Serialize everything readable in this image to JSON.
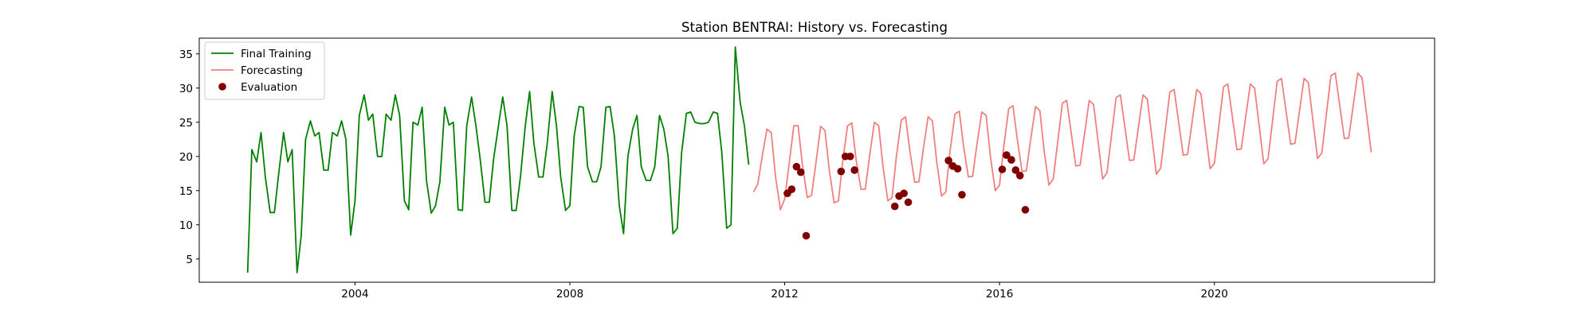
{
  "chart_data": {
    "type": "line",
    "title": "Station BENTRAI: History vs. Forecasting",
    "xlabel": "",
    "ylabel": "",
    "xlim": [
      2001.1,
      2024.1
    ],
    "ylim": [
      1.6,
      37.3
    ],
    "xticks": [
      2004,
      2008,
      2012,
      2016,
      2020
    ],
    "yticks": [
      5,
      10,
      15,
      20,
      25,
      30,
      35
    ],
    "grid": false,
    "legend_position": "top-left",
    "series": [
      {
        "name": "Final Training",
        "kind": "line",
        "color": "#008000",
        "points": [
          [
            2002.0,
            3.0
          ],
          [
            2002.08,
            21.0
          ],
          [
            2002.17,
            19.2
          ],
          [
            2002.25,
            23.5
          ],
          [
            2002.33,
            17.0
          ],
          [
            2002.42,
            11.8
          ],
          [
            2002.5,
            11.8
          ],
          [
            2002.58,
            17.5
          ],
          [
            2002.67,
            23.5
          ],
          [
            2002.75,
            19.2
          ],
          [
            2002.83,
            21.0
          ],
          [
            2002.92,
            3.0
          ],
          [
            2003.0,
            8.5
          ],
          [
            2003.08,
            22.5
          ],
          [
            2003.17,
            25.2
          ],
          [
            2003.25,
            23.0
          ],
          [
            2003.33,
            23.5
          ],
          [
            2003.42,
            18.0
          ],
          [
            2003.5,
            18.0
          ],
          [
            2003.58,
            23.5
          ],
          [
            2003.67,
            23.0
          ],
          [
            2003.75,
            25.2
          ],
          [
            2003.83,
            22.5
          ],
          [
            2003.92,
            8.5
          ],
          [
            2004.0,
            13.5
          ],
          [
            2004.08,
            26.0
          ],
          [
            2004.17,
            29.0
          ],
          [
            2004.25,
            25.3
          ],
          [
            2004.33,
            26.2
          ],
          [
            2004.42,
            20.0
          ],
          [
            2004.5,
            20.0
          ],
          [
            2004.58,
            26.2
          ],
          [
            2004.67,
            25.3
          ],
          [
            2004.75,
            29.0
          ],
          [
            2004.83,
            26.0
          ],
          [
            2004.92,
            13.5
          ],
          [
            2005.0,
            12.2
          ],
          [
            2005.08,
            25.0
          ],
          [
            2005.17,
            24.6
          ],
          [
            2005.25,
            27.2
          ],
          [
            2005.33,
            16.5
          ],
          [
            2005.42,
            11.7
          ],
          [
            2005.5,
            12.8
          ],
          [
            2005.58,
            16.3
          ],
          [
            2005.67,
            27.2
          ],
          [
            2005.75,
            24.6
          ],
          [
            2005.83,
            25.0
          ],
          [
            2005.92,
            12.2
          ],
          [
            2006.0,
            12.1
          ],
          [
            2006.08,
            24.5
          ],
          [
            2006.17,
            28.7
          ],
          [
            2006.25,
            24.5
          ],
          [
            2006.33,
            19.6
          ],
          [
            2006.42,
            13.3
          ],
          [
            2006.5,
            13.3
          ],
          [
            2006.58,
            19.6
          ],
          [
            2006.67,
            24.5
          ],
          [
            2006.75,
            28.7
          ],
          [
            2006.83,
            24.5
          ],
          [
            2006.92,
            12.1
          ],
          [
            2007.0,
            12.1
          ],
          [
            2007.08,
            17.0
          ],
          [
            2007.17,
            24.5
          ],
          [
            2007.25,
            29.5
          ],
          [
            2007.33,
            22.0
          ],
          [
            2007.42,
            17.0
          ],
          [
            2007.5,
            17.0
          ],
          [
            2007.58,
            22.0
          ],
          [
            2007.67,
            29.5
          ],
          [
            2007.75,
            24.5
          ],
          [
            2007.83,
            17.0
          ],
          [
            2007.92,
            12.1
          ],
          [
            2008.0,
            12.8
          ],
          [
            2008.08,
            23.0
          ],
          [
            2008.17,
            27.3
          ],
          [
            2008.25,
            27.2
          ],
          [
            2008.33,
            18.5
          ],
          [
            2008.42,
            16.3
          ],
          [
            2008.5,
            16.3
          ],
          [
            2008.58,
            18.5
          ],
          [
            2008.67,
            27.2
          ],
          [
            2008.75,
            27.3
          ],
          [
            2008.83,
            23.0
          ],
          [
            2008.92,
            12.8
          ],
          [
            2009.0,
            8.7
          ],
          [
            2009.08,
            20.0
          ],
          [
            2009.17,
            24.0
          ],
          [
            2009.25,
            26.0
          ],
          [
            2009.33,
            18.5
          ],
          [
            2009.42,
            16.5
          ],
          [
            2009.5,
            16.5
          ],
          [
            2009.58,
            18.5
          ],
          [
            2009.67,
            26.0
          ],
          [
            2009.75,
            24.0
          ],
          [
            2009.83,
            20.0
          ],
          [
            2009.92,
            8.7
          ],
          [
            2010.0,
            9.5
          ],
          [
            2010.08,
            20.5
          ],
          [
            2010.17,
            26.3
          ],
          [
            2010.25,
            26.5
          ],
          [
            2010.33,
            25.0
          ],
          [
            2010.42,
            24.8
          ],
          [
            2010.5,
            24.8
          ],
          [
            2010.58,
            25.0
          ],
          [
            2010.67,
            26.5
          ],
          [
            2010.75,
            26.3
          ],
          [
            2010.83,
            20.5
          ],
          [
            2010.92,
            9.5
          ],
          [
            2011.0,
            10.0
          ],
          [
            2011.08,
            36.0
          ],
          [
            2011.17,
            28.0
          ],
          [
            2011.25,
            24.5
          ],
          [
            2011.33,
            18.8
          ]
        ]
      },
      {
        "name": "Forecasting",
        "kind": "line",
        "color": "#f08080",
        "points": [
          [
            2011.42,
            14.8
          ],
          [
            2011.5,
            16.0
          ],
          [
            2011.58,
            20.0
          ],
          [
            2011.67,
            24.0
          ],
          [
            2011.75,
            23.5
          ],
          [
            2011.83,
            17.0
          ],
          [
            2011.92,
            12.2
          ],
          [
            2012.0,
            13.8
          ],
          [
            2012.08,
            18.8
          ],
          [
            2012.17,
            24.5
          ],
          [
            2012.25,
            24.5
          ],
          [
            2012.33,
            18.8
          ],
          [
            2012.42,
            14.0
          ],
          [
            2012.5,
            14.3
          ],
          [
            2012.58,
            19.0
          ],
          [
            2012.67,
            24.4
          ],
          [
            2012.75,
            23.8
          ],
          [
            2012.83,
            18.0
          ],
          [
            2012.92,
            13.2
          ],
          [
            2013.0,
            13.5
          ],
          [
            2013.08,
            19.2
          ],
          [
            2013.17,
            24.5
          ],
          [
            2013.25,
            24.9
          ],
          [
            2013.33,
            19.5
          ],
          [
            2013.42,
            15.2
          ],
          [
            2013.5,
            15.2
          ],
          [
            2013.58,
            20.0
          ],
          [
            2013.67,
            25.0
          ],
          [
            2013.75,
            24.5
          ],
          [
            2013.83,
            18.5
          ],
          [
            2013.92,
            13.5
          ],
          [
            2014.0,
            14.0
          ],
          [
            2014.08,
            20.0
          ],
          [
            2014.17,
            25.3
          ],
          [
            2014.25,
            25.8
          ],
          [
            2014.33,
            20.8
          ],
          [
            2014.42,
            16.2
          ],
          [
            2014.5,
            16.3
          ],
          [
            2014.58,
            21.0
          ],
          [
            2014.67,
            25.8
          ],
          [
            2014.75,
            25.2
          ],
          [
            2014.83,
            19.2
          ],
          [
            2014.92,
            14.2
          ],
          [
            2015.0,
            14.8
          ],
          [
            2015.08,
            20.8
          ],
          [
            2015.17,
            26.2
          ],
          [
            2015.25,
            26.6
          ],
          [
            2015.33,
            21.5
          ],
          [
            2015.42,
            17.0
          ],
          [
            2015.5,
            17.1
          ],
          [
            2015.58,
            21.8
          ],
          [
            2015.67,
            26.5
          ],
          [
            2015.75,
            26.0
          ],
          [
            2015.83,
            20.0
          ],
          [
            2015.92,
            15.0
          ],
          [
            2016.0,
            15.8
          ],
          [
            2016.08,
            21.5
          ],
          [
            2016.17,
            27.0
          ],
          [
            2016.25,
            27.4
          ],
          [
            2016.33,
            22.5
          ],
          [
            2016.42,
            17.8
          ],
          [
            2016.5,
            17.9
          ],
          [
            2016.58,
            22.5
          ],
          [
            2016.67,
            27.3
          ],
          [
            2016.75,
            26.7
          ],
          [
            2016.83,
            20.8
          ],
          [
            2016.92,
            15.8
          ],
          [
            2017.0,
            16.7
          ],
          [
            2017.17,
            27.8
          ],
          [
            2017.25,
            28.2
          ],
          [
            2017.42,
            18.6
          ],
          [
            2017.5,
            18.7
          ],
          [
            2017.67,
            28.2
          ],
          [
            2017.75,
            27.6
          ],
          [
            2017.92,
            16.7
          ],
          [
            2018.0,
            17.6
          ],
          [
            2018.17,
            28.6
          ],
          [
            2018.25,
            29.0
          ],
          [
            2018.42,
            19.4
          ],
          [
            2018.5,
            19.5
          ],
          [
            2018.67,
            29.0
          ],
          [
            2018.75,
            28.4
          ],
          [
            2018.92,
            17.4
          ],
          [
            2019.0,
            18.3
          ],
          [
            2019.17,
            29.4
          ],
          [
            2019.25,
            29.8
          ],
          [
            2019.42,
            20.2
          ],
          [
            2019.5,
            20.3
          ],
          [
            2019.67,
            29.8
          ],
          [
            2019.75,
            29.2
          ],
          [
            2019.92,
            18.2
          ],
          [
            2020.0,
            19.0
          ],
          [
            2020.17,
            30.2
          ],
          [
            2020.25,
            30.6
          ],
          [
            2020.42,
            21.0
          ],
          [
            2020.5,
            21.1
          ],
          [
            2020.67,
            30.6
          ],
          [
            2020.75,
            30.0
          ],
          [
            2020.92,
            18.9
          ],
          [
            2021.0,
            19.7
          ],
          [
            2021.17,
            31.0
          ],
          [
            2021.25,
            31.4
          ],
          [
            2021.42,
            21.8
          ],
          [
            2021.5,
            21.9
          ],
          [
            2021.67,
            31.4
          ],
          [
            2021.75,
            30.8
          ],
          [
            2021.92,
            19.7
          ],
          [
            2022.0,
            20.5
          ],
          [
            2022.17,
            31.8
          ],
          [
            2022.25,
            32.2
          ],
          [
            2022.42,
            22.6
          ],
          [
            2022.5,
            22.7
          ],
          [
            2022.67,
            32.2
          ],
          [
            2022.75,
            31.5
          ],
          [
            2022.92,
            20.6
          ]
        ]
      },
      {
        "name": "Evaluation",
        "kind": "scatter",
        "color": "#800000",
        "points": [
          [
            2012.05,
            14.6
          ],
          [
            2012.13,
            15.2
          ],
          [
            2012.22,
            18.5
          ],
          [
            2012.3,
            17.7
          ],
          [
            2012.4,
            8.4
          ],
          [
            2013.05,
            17.8
          ],
          [
            2013.13,
            20.0
          ],
          [
            2013.22,
            20.0
          ],
          [
            2013.3,
            18.0
          ],
          [
            2014.05,
            12.7
          ],
          [
            2014.13,
            14.2
          ],
          [
            2014.22,
            14.6
          ],
          [
            2014.3,
            13.3
          ],
          [
            2015.05,
            19.4
          ],
          [
            2015.13,
            18.6
          ],
          [
            2015.22,
            18.2
          ],
          [
            2015.3,
            14.4
          ],
          [
            2016.05,
            18.1
          ],
          [
            2016.13,
            20.2
          ],
          [
            2016.22,
            19.5
          ],
          [
            2016.3,
            18.0
          ],
          [
            2016.38,
            17.2
          ],
          [
            2016.48,
            12.2
          ]
        ]
      }
    ]
  }
}
